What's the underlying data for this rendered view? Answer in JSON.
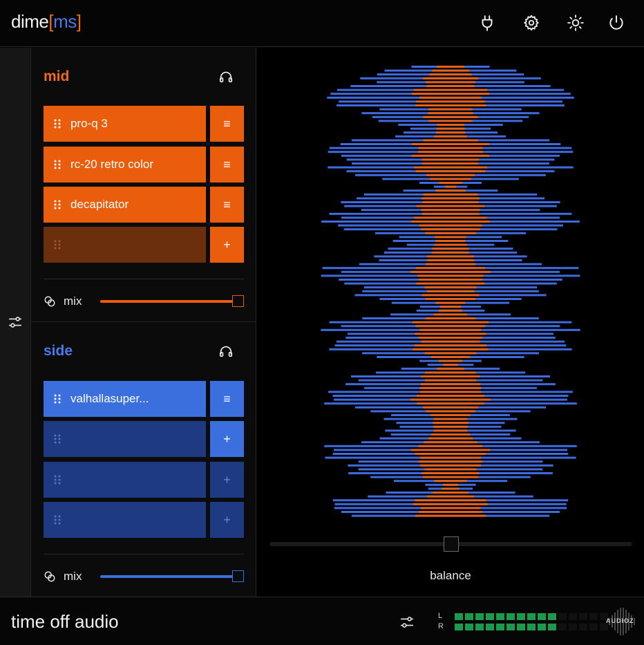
{
  "header": {
    "logo_prefix": "dime",
    "logo_open": "[",
    "logo_ms": "ms",
    "logo_close": "]"
  },
  "colors": {
    "mid_accent": "#ea5d0c",
    "side_accent": "#3b6fdd",
    "meter_green": "#1a9a4a"
  },
  "mid": {
    "title": "mid",
    "slots": [
      {
        "name": "pro-q 3",
        "button": "menu"
      },
      {
        "name": "rc-20 retro color",
        "button": "menu"
      },
      {
        "name": "decapitator",
        "button": "menu"
      },
      {
        "name": "",
        "button": "add"
      }
    ],
    "mix_label": "mix",
    "mix_value": 1.0
  },
  "side": {
    "title": "side",
    "slots": [
      {
        "name": "valhallasuper...",
        "button": "menu"
      },
      {
        "name": "",
        "button": "add"
      },
      {
        "name": "",
        "button": "add"
      },
      {
        "name": "",
        "button": "add"
      }
    ],
    "mix_label": "mix",
    "mix_value": 1.0
  },
  "visualizer": {
    "balance_label": "balance",
    "balance_value": 0.5
  },
  "footer": {
    "brand": "time off audio",
    "meter_left_label": "L",
    "meter_right_label": "R",
    "meter_segments": 15,
    "meter_left_lit": 10,
    "meter_right_lit": 10,
    "watermark": "AUDIOZ"
  },
  "glyphs": {
    "menu": "≡",
    "add": "+"
  }
}
